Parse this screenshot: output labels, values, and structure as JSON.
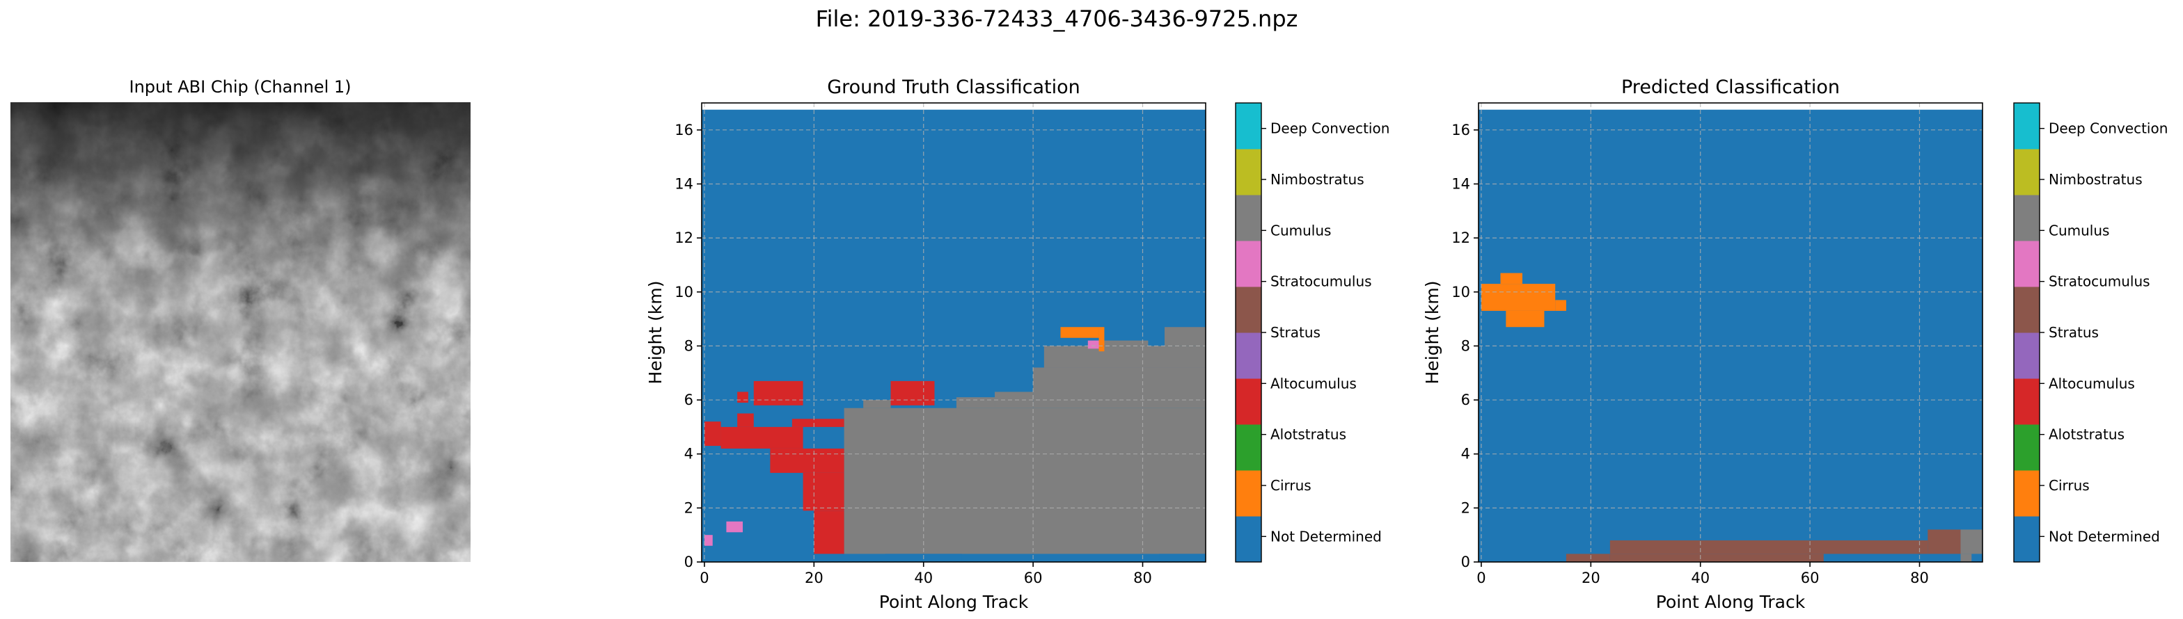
{
  "figure": {
    "suptitle": "File: 2019-336-72433_4706-3436-9725.npz"
  },
  "image_panel": {
    "title": "Input ABI Chip (Channel 1)"
  },
  "colors": {
    "classes": [
      "#1f77b4",
      "#ff7f0e",
      "#2ca02c",
      "#d62728",
      "#9467bd",
      "#8c564b",
      "#e377c2",
      "#7f7f7f",
      "#bcbd22",
      "#17becf"
    ],
    "grid": "#b0b0b0"
  },
  "chart_data": [
    {
      "type": "heatmap",
      "title": "Ground Truth Classification",
      "xlabel": "Point Along Track",
      "ylabel": "Height (km)",
      "xlim": [
        -0.5,
        91.5
      ],
      "ylim": [
        0,
        17
      ],
      "xticks": [
        "0",
        "20",
        "40",
        "60",
        "80"
      ],
      "yticks": [
        "0",
        "2",
        "4",
        "6",
        "8",
        "10",
        "12",
        "14",
        "16"
      ],
      "grid": true,
      "colorbar_labels": [
        "Not Determined",
        "Cirrus",
        "Alotstratus",
        "Altocumulus",
        "Stratus",
        "Stratocumulus",
        "Cumulus",
        "Nimbostratus",
        "Deep Convection"
      ],
      "background_class": "Not Determined",
      "regions": [
        {
          "class": "Nimbostratus",
          "x": [
            25.5,
            91.5
          ],
          "y": [
            0.3,
            5.7
          ]
        },
        {
          "class": "Nimbostratus",
          "x": [
            29,
            34
          ],
          "y": [
            5.7,
            6.0
          ]
        },
        {
          "class": "Nimbostratus",
          "x": [
            46,
            53
          ],
          "y": [
            5.7,
            6.1
          ]
        },
        {
          "class": "Nimbostratus",
          "x": [
            53,
            60
          ],
          "y": [
            5.7,
            6.3
          ]
        },
        {
          "class": "Nimbostratus",
          "x": [
            60,
            91.5
          ],
          "y": [
            5.7,
            7.2
          ]
        },
        {
          "class": "Nimbostratus",
          "x": [
            62,
            91.5
          ],
          "y": [
            7.2,
            8.0
          ]
        },
        {
          "class": "Nimbostratus",
          "x": [
            71,
            81
          ],
          "y": [
            8.0,
            8.2
          ]
        },
        {
          "class": "Nimbostratus",
          "x": [
            84,
            91.5
          ],
          "y": [
            8.0,
            8.7
          ]
        },
        {
          "class": "Nimbostratus",
          "x": [
            22,
            25.5
          ],
          "y": [
            2.1,
            2.6
          ]
        },
        {
          "class": "Altocumulus",
          "x": [
            9,
            18
          ],
          "y": [
            5.8,
            6.7
          ]
        },
        {
          "class": "Altocumulus",
          "x": [
            6,
            9
          ],
          "y": [
            5.0,
            5.5
          ]
        },
        {
          "class": "Altocumulus",
          "x": [
            3,
            18
          ],
          "y": [
            4.2,
            5.0
          ]
        },
        {
          "class": "Altocumulus",
          "x": [
            16,
            25.5
          ],
          "y": [
            5.0,
            5.3
          ]
        },
        {
          "class": "Altocumulus",
          "x": [
            0,
            3
          ],
          "y": [
            4.3,
            5.2
          ]
        },
        {
          "class": "Altocumulus",
          "x": [
            12,
            25.5
          ],
          "y": [
            3.3,
            4.2
          ]
        },
        {
          "class": "Altocumulus",
          "x": [
            18,
            25.5
          ],
          "y": [
            1.9,
            3.3
          ]
        },
        {
          "class": "Altocumulus",
          "x": [
            20,
            25.5
          ],
          "y": [
            0.3,
            1.9
          ]
        },
        {
          "class": "Altocumulus",
          "x": [
            34,
            42
          ],
          "y": [
            5.8,
            6.7
          ]
        },
        {
          "class": "Altocumulus",
          "x": [
            6,
            8
          ],
          "y": [
            5.9,
            6.3
          ]
        },
        {
          "class": "Cirrus",
          "x": [
            65,
            72
          ],
          "y": [
            8.3,
            8.7
          ]
        },
        {
          "class": "Cirrus",
          "x": [
            72,
            73
          ],
          "y": [
            7.8,
            8.7
          ]
        },
        {
          "class": "Cumulus",
          "x": [
            0,
            1.5
          ],
          "y": [
            0.6,
            1.0
          ]
        },
        {
          "class": "Cumulus",
          "x": [
            4,
            7
          ],
          "y": [
            1.1,
            1.5
          ]
        },
        {
          "class": "Cumulus",
          "x": [
            70,
            72
          ],
          "y": [
            7.9,
            8.2
          ]
        },
        {
          "class": "Not Determined",
          "x": [
            33,
            47
          ],
          "y": [
            0,
            0.3
          ]
        },
        {
          "class": "Not Determined",
          "x": [
            83,
            91.5
          ],
          "y": [
            0,
            0.3
          ]
        }
      ]
    },
    {
      "type": "heatmap",
      "title": "Predicted Classification",
      "xlabel": "Point Along Track",
      "ylabel": "Height (km)",
      "xlim": [
        -0.5,
        91.5
      ],
      "ylim": [
        0,
        17
      ],
      "xticks": [
        "0",
        "20",
        "40",
        "60",
        "80"
      ],
      "yticks": [
        "0",
        "2",
        "4",
        "6",
        "8",
        "10",
        "12",
        "14",
        "16"
      ],
      "grid": true,
      "colorbar_labels": [
        "Not Determined",
        "Cirrus",
        "Alotstratus",
        "Altocumulus",
        "Stratus",
        "Stratocumulus",
        "Cumulus",
        "Nimbostratus",
        "Deep Convection"
      ],
      "background_class": "Not Determined",
      "regions": [
        {
          "class": "Cirrus",
          "x": [
            3.5,
            7.5
          ],
          "y": [
            10.3,
            10.7
          ]
        },
        {
          "class": "Cirrus",
          "x": [
            0,
            13.5
          ],
          "y": [
            9.3,
            10.3
          ]
        },
        {
          "class": "Cirrus",
          "x": [
            13.5,
            15.5
          ],
          "y": [
            9.3,
            9.7
          ]
        },
        {
          "class": "Cirrus",
          "x": [
            4.5,
            11.5
          ],
          "y": [
            8.7,
            9.3
          ]
        },
        {
          "class": "Stratocumulus",
          "x": [
            15.5,
            23.5
          ],
          "y": [
            0,
            0.3
          ]
        },
        {
          "class": "Stratocumulus",
          "x": [
            23.5,
            81.5
          ],
          "y": [
            0.3,
            0.8
          ]
        },
        {
          "class": "Stratocumulus",
          "x": [
            23.5,
            62.5
          ],
          "y": [
            0,
            0.3
          ]
        },
        {
          "class": "Stratocumulus",
          "x": [
            81.5,
            87.5
          ],
          "y": [
            0.3,
            1.2
          ]
        },
        {
          "class": "Nimbostratus",
          "x": [
            87.5,
            91.5
          ],
          "y": [
            0.3,
            1.2
          ]
        },
        {
          "class": "Nimbostratus",
          "x": [
            87.5,
            89.5
          ],
          "y": [
            0,
            0.3
          ]
        }
      ]
    }
  ]
}
